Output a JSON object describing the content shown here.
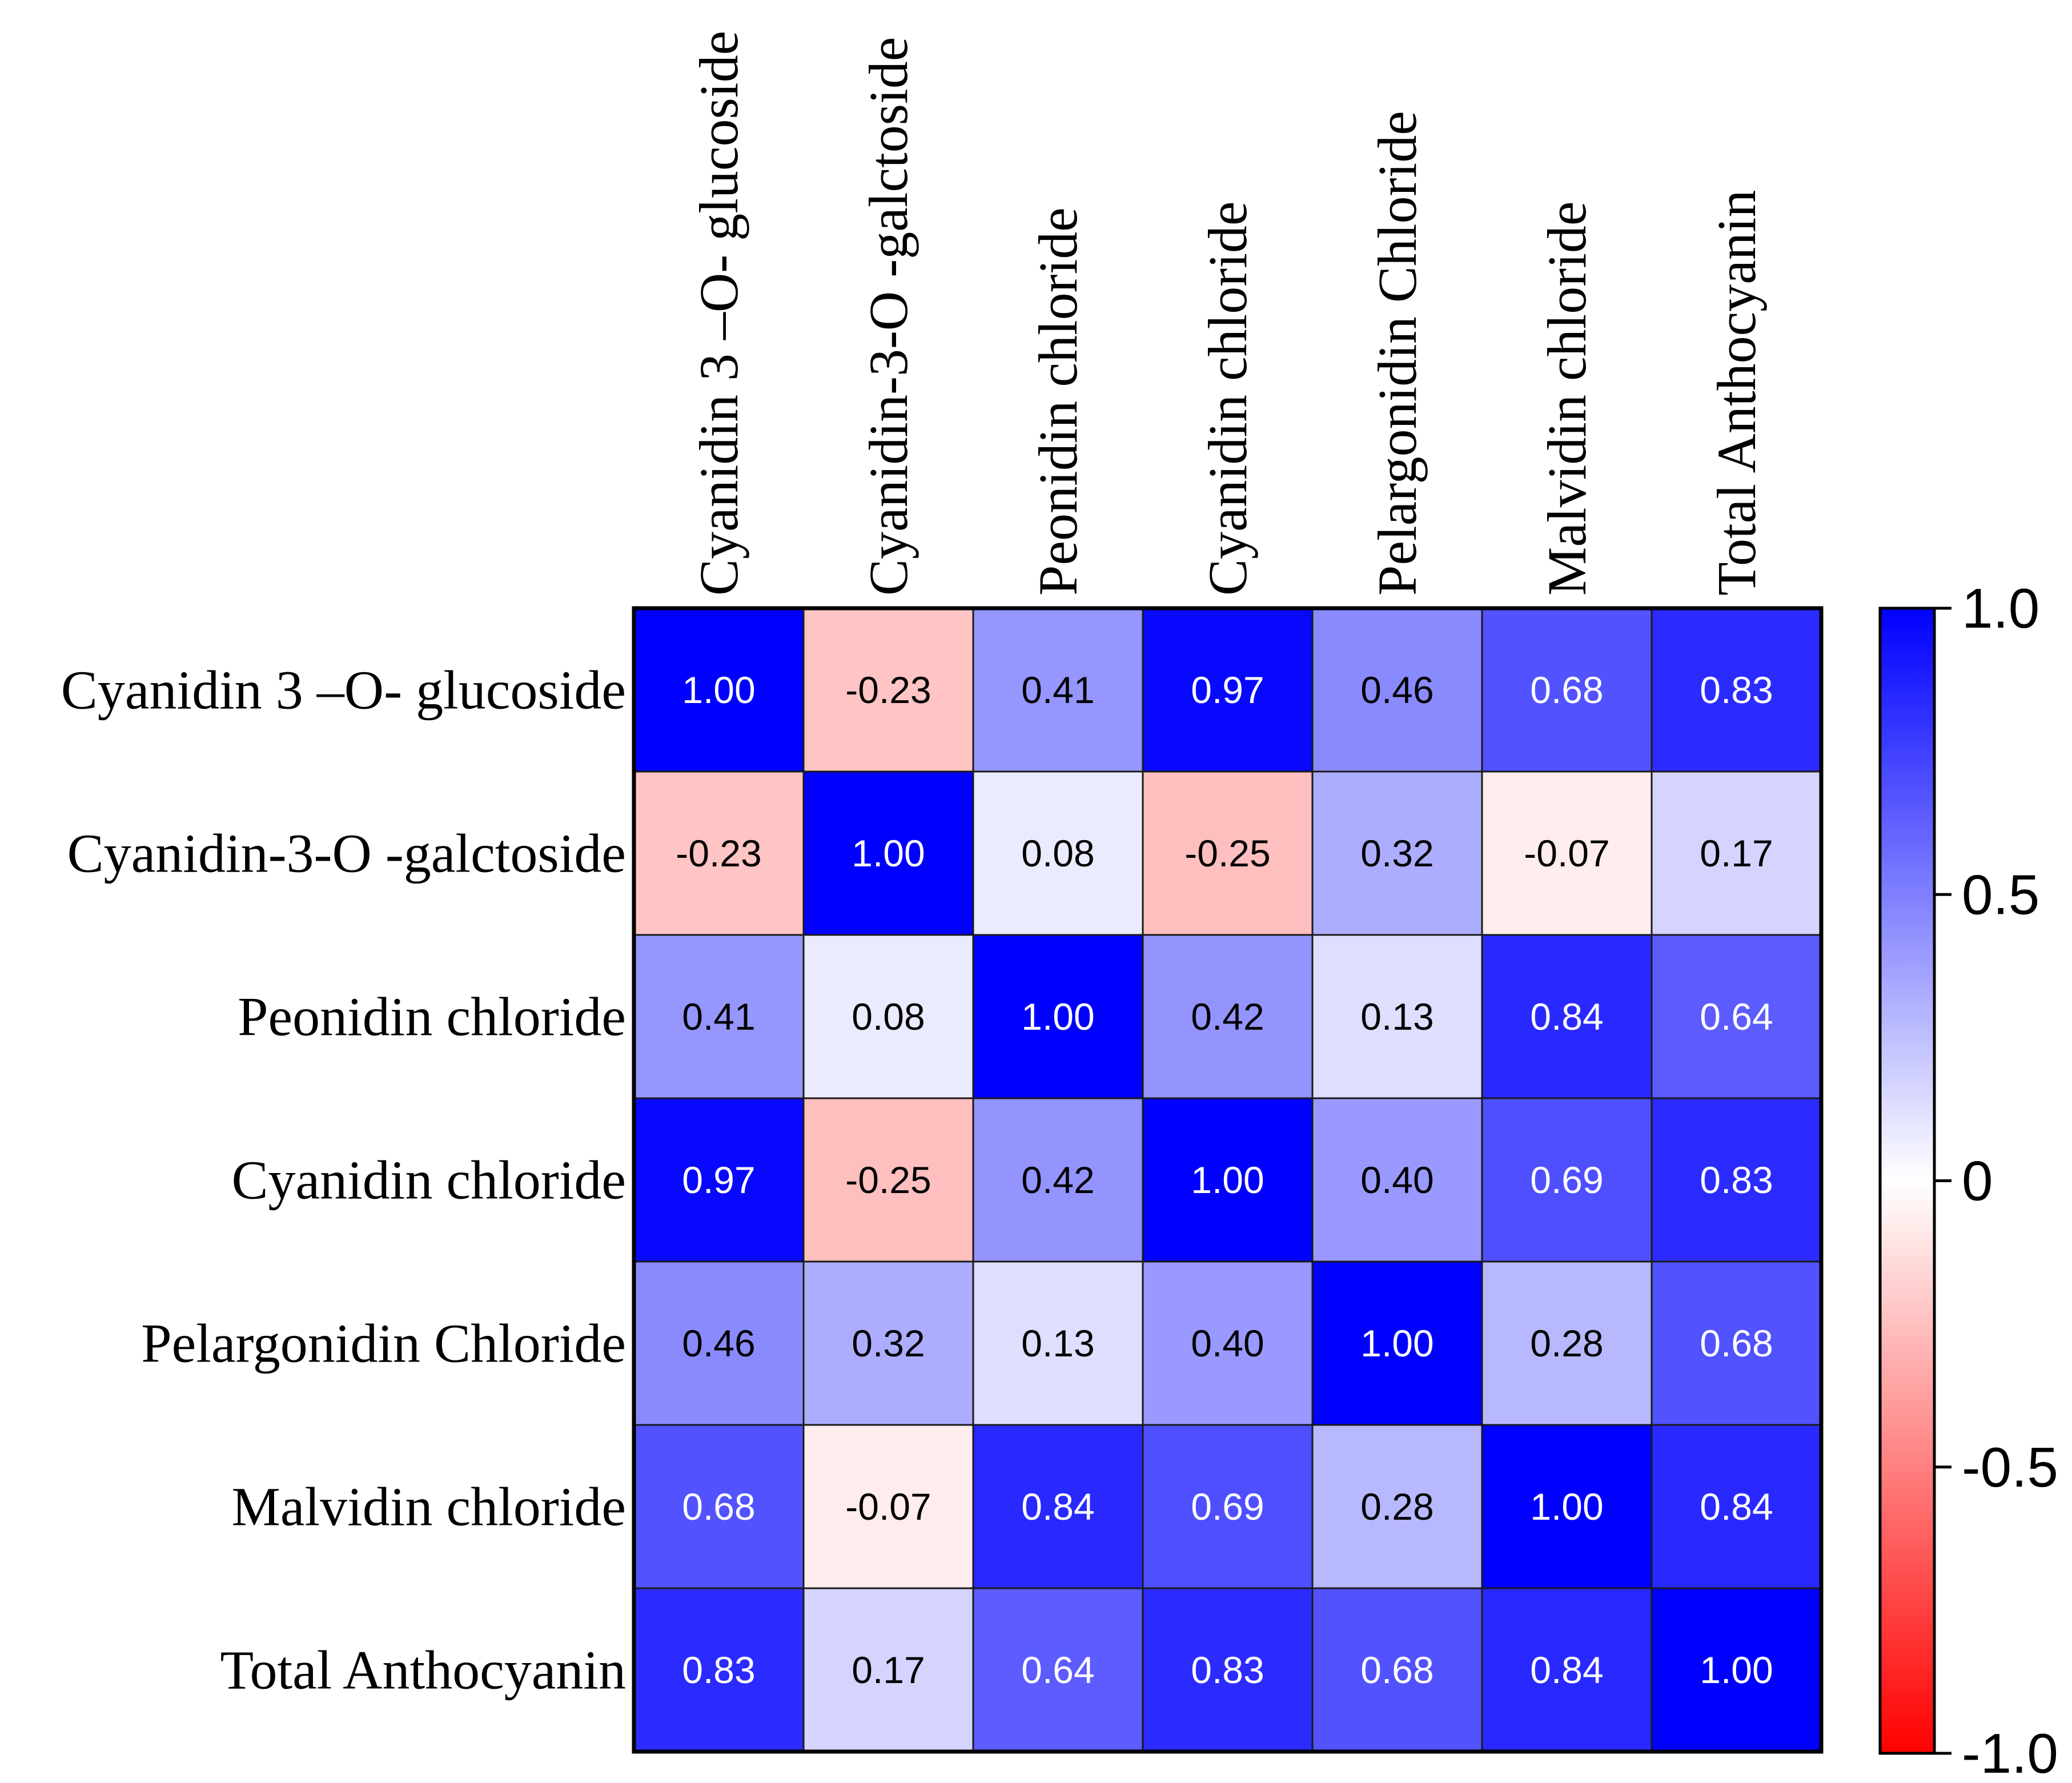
{
  "chart_data": {
    "type": "heatmap",
    "title": "",
    "xlabel": "",
    "ylabel": "",
    "row_labels": [
      "Cyanidin 3 –O- glucoside",
      "Cyanidin-3-O -galctoside",
      "Peonidin chloride",
      "Cyanidin chloride",
      "Pelargonidin Chloride",
      "Malvidin chloride",
      "Total Anthocyanin"
    ],
    "column_labels": [
      "Cyanidin 3 –O- glucoside",
      "Cyanidin-3-O -galctoside",
      "Peonidin chloride",
      "Cyanidin chloride",
      "Pelargonidin Chloride",
      "Malvidin chloride",
      "Total Anthocyanin"
    ],
    "values": [
      [
        1.0,
        -0.23,
        0.41,
        0.97,
        0.46,
        0.68,
        0.83
      ],
      [
        -0.23,
        1.0,
        0.08,
        -0.25,
        0.32,
        -0.07,
        0.17
      ],
      [
        0.41,
        0.08,
        1.0,
        0.42,
        0.13,
        0.84,
        0.64
      ],
      [
        0.97,
        -0.25,
        0.42,
        1.0,
        0.4,
        0.69,
        0.83
      ],
      [
        0.46,
        0.32,
        0.13,
        0.4,
        1.0,
        0.28,
        0.68
      ],
      [
        0.68,
        -0.07,
        0.84,
        0.69,
        0.28,
        1.0,
        0.84
      ],
      [
        0.83,
        0.17,
        0.64,
        0.83,
        0.68,
        0.84,
        1.0
      ]
    ],
    "value_labels": [
      [
        "1.00",
        "-0.23",
        "0.41",
        "0.97",
        "0.46",
        "0.68",
        "0.83"
      ],
      [
        "-0.23",
        "1.00",
        "0.08",
        "-0.25",
        "0.32",
        "-0.07",
        "0.17"
      ],
      [
        "0.41",
        "0.08",
        "1.00",
        "0.42",
        "0.13",
        "0.84",
        "0.64"
      ],
      [
        "0.97",
        "-0.25",
        "0.42",
        "1.00",
        "0.40",
        "0.69",
        "0.83"
      ],
      [
        "0.46",
        "0.32",
        "0.13",
        "0.40",
        "1.00",
        "0.28",
        "0.68"
      ],
      [
        "0.68",
        "-0.07",
        "0.84",
        "0.69",
        "0.28",
        "1.00",
        "0.84"
      ],
      [
        "0.83",
        "0.17",
        "0.64",
        "0.83",
        "0.68",
        "0.84",
        "1.00"
      ]
    ],
    "colorbar": {
      "range": [
        -1.0,
        1.0
      ],
      "ticks": [
        1.0,
        0.5,
        0,
        -0.5,
        -1.0
      ],
      "tick_labels": [
        "1.0",
        "0.5",
        "0",
        "-0.5",
        "-1.0"
      ],
      "colors": {
        "negative": "#ff0000",
        "zero": "#ffffff",
        "positive": "#0000ff"
      }
    },
    "legend_position": "right"
  }
}
